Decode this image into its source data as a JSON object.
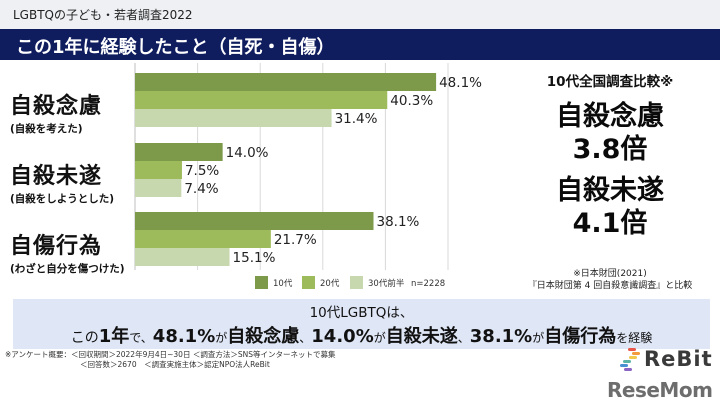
{
  "header": {
    "subtitle": "LGBTQの子ども・若者調査2022",
    "title": "この1年に経験したこと（自死・自傷）"
  },
  "categories": [
    {
      "main": "自殺念慮",
      "sub": "(自殺を考えた)"
    },
    {
      "main": "自殺未遂",
      "sub": "(自殺をしようとした)"
    },
    {
      "main": "自傷行為",
      "sub": "(わざと自分を傷つけた)"
    }
  ],
  "chart_data": {
    "type": "bar",
    "orientation": "horizontal",
    "categories": [
      "自殺念慮",
      "自殺未遂",
      "自傷行為"
    ],
    "series": [
      {
        "name": "10代",
        "values": [
          48.1,
          14.0,
          38.1
        ],
        "labels": [
          "48.1%",
          "14.0%",
          "38.1%"
        ],
        "color": "#7c9a4a"
      },
      {
        "name": "20代",
        "values": [
          40.3,
          7.5,
          21.7
        ],
        "labels": [
          "40.3%",
          "7.5%",
          "21.7%"
        ],
        "color": "#9dbb5a"
      },
      {
        "name": "30代前半",
        "values": [
          31.4,
          7.4,
          15.1
        ],
        "labels": [
          "31.4%",
          "7.4%",
          "15.1%"
        ],
        "color": "#c8d8ae"
      }
    ],
    "xlim": [
      0,
      50
    ],
    "grid_step": 10,
    "grid": true,
    "legend_position": "bottom-right",
    "n_label": "n=2228",
    "title": "",
    "xlabel": "",
    "ylabel": ""
  },
  "comparison": {
    "heading": "10代全国調査比較※",
    "items": [
      {
        "label": "自殺念慮",
        "value": "3.8倍"
      },
      {
        "label": "自殺未遂",
        "value": "4.1倍"
      }
    ],
    "note_line1": "※日本財団(2021)",
    "note_line2": "『日本財団第 4 回自殺意識調査』と比較"
  },
  "summary": {
    "line1": "10代LGBTQは、",
    "line2": [
      {
        "t": "この",
        "w": "n"
      },
      {
        "t": "1年",
        "w": "b"
      },
      {
        "t": "で、",
        "w": "s"
      },
      {
        "t": "48.1%",
        "w": "b"
      },
      {
        "t": "が",
        "w": "s"
      },
      {
        "t": "自殺念慮",
        "w": "b"
      },
      {
        "t": "、",
        "w": "s"
      },
      {
        "t": "14.0%",
        "w": "b"
      },
      {
        "t": "が",
        "w": "s"
      },
      {
        "t": "自殺未遂",
        "w": "b"
      },
      {
        "t": "、",
        "w": "s"
      },
      {
        "t": "38.1%",
        "w": "b"
      },
      {
        "t": "が",
        "w": "s"
      },
      {
        "t": "自傷行為",
        "w": "b"
      },
      {
        "t": "を経験",
        "w": "s"
      }
    ]
  },
  "footnote": {
    "line1": "※アンケート概要：＜回収期間＞2022年9月4日~30日 ＜調査方法＞SNS等インターネットで募集",
    "line2": "＜回答数＞2670　＜調査実施主体＞認定NPO法人ReBit"
  },
  "logos": {
    "rebit": "ReBit",
    "resemom": "ReseMom"
  }
}
